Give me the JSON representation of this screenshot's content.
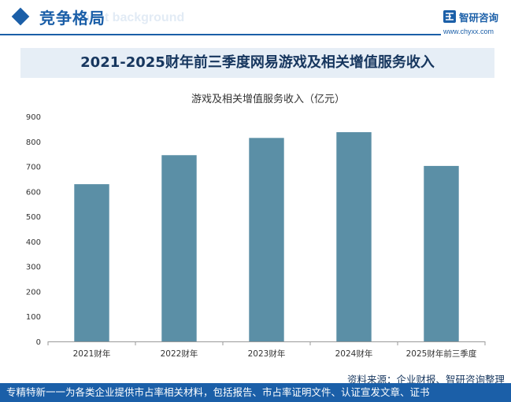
{
  "header": {
    "title": "竞争格局",
    "ghost_text": "ment background"
  },
  "brand": {
    "name": "智研咨询",
    "url": "www.chyxx.com"
  },
  "banner": {
    "title": "2021-2025财年前三季度网易游戏及相关增值服务收入"
  },
  "chart_data": {
    "type": "bar",
    "title": "游戏及相关增值服务收入（亿元）",
    "categories": [
      "2021财年",
      "2022财年",
      "2023财年",
      "2024财年",
      "2025财年前三季度"
    ],
    "values": [
      629,
      745,
      814,
      837,
      702
    ],
    "ylim": [
      0,
      900
    ],
    "yticks": [
      0,
      100,
      200,
      300,
      400,
      500,
      600,
      700,
      800,
      900
    ],
    "grid": false,
    "bar_color": "#5b8fa6"
  },
  "source": "资料来源：企业财报、智研咨询整理",
  "footer": {
    "text": "专精特新一一为各类企业提供市占率相关材料，包括报告、市占率证明文件、认证宣发文章、证书"
  },
  "colors": {
    "brand_blue": "#1b5fa8",
    "banner_bg": "#e6eef6",
    "banner_text": "#16365e"
  }
}
